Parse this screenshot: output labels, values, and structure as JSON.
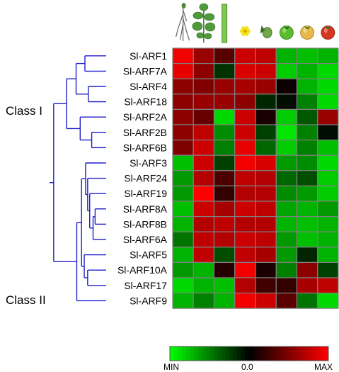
{
  "chart_data": {
    "type": "heatmap",
    "rows": [
      "Sl-ARF1",
      "Sl-ARF7A",
      "Sl-ARF4",
      "Sl-ARF18",
      "Sl-ARF2A",
      "Sl-ARF2B",
      "Sl-ARF6B",
      "Sl-ARF3",
      "Sl-ARF24",
      "Sl-ARF19",
      "Sl-ARF8A",
      "Sl-ARF8B",
      "Sl-ARF6A",
      "Sl-ARF5",
      "Sl-ARF10A",
      "Sl-ARF17",
      "Sl-ARF9"
    ],
    "columns": [
      "root",
      "leaf",
      "stem",
      "flower",
      "fruit-immature",
      "fruit-mature-green",
      "fruit-breaker",
      "fruit-ripe"
    ],
    "column_icons": [
      "root-icon",
      "leaf-icon",
      "stem-icon",
      "flower-icon",
      "small-fruit-icon",
      "green-fruit-icon",
      "breaker-fruit-icon",
      "red-fruit-icon"
    ],
    "values": [
      [
        0.95,
        0.6,
        0.35,
        0.8,
        0.75,
        -0.7,
        -0.75,
        -0.7
      ],
      [
        0.9,
        0.55,
        -0.2,
        0.85,
        0.8,
        -0.8,
        -0.7,
        -0.85
      ],
      [
        0.55,
        0.5,
        0.6,
        0.65,
        0.6,
        0.05,
        -0.7,
        -0.85
      ],
      [
        0.55,
        0.6,
        0.6,
        0.55,
        -0.15,
        -0.05,
        -0.5,
        -0.85
      ],
      [
        0.55,
        0.4,
        -0.85,
        0.8,
        0.1,
        -0.8,
        -0.35,
        0.6
      ],
      [
        0.55,
        0.75,
        -0.55,
        0.8,
        -0.25,
        -0.9,
        -0.5,
        -0.05
      ],
      [
        0.5,
        0.8,
        -0.5,
        0.9,
        -0.4,
        -0.8,
        -0.5,
        -0.75
      ],
      [
        -0.75,
        0.8,
        -0.25,
        0.95,
        0.85,
        -0.6,
        -0.55,
        -0.85
      ],
      [
        -0.6,
        0.7,
        0.3,
        0.75,
        0.7,
        -0.4,
        -0.3,
        -0.8
      ],
      [
        -0.6,
        1.0,
        0.2,
        0.7,
        0.7,
        -0.55,
        -0.6,
        -0.8
      ],
      [
        -0.75,
        0.8,
        0.65,
        0.8,
        0.75,
        -0.65,
        -0.7,
        -0.6
      ],
      [
        -0.7,
        0.7,
        0.75,
        0.7,
        0.7,
        -0.7,
        -0.75,
        -0.7
      ],
      [
        -0.45,
        0.75,
        0.7,
        0.8,
        0.75,
        -0.6,
        -0.75,
        -0.7
      ],
      [
        -0.7,
        0.75,
        -0.3,
        0.75,
        0.65,
        -0.6,
        -0.15,
        -0.7
      ],
      [
        -0.6,
        -0.7,
        0.15,
        0.95,
        0.1,
        -0.5,
        0.55,
        -0.25
      ],
      [
        -0.85,
        -0.7,
        -0.75,
        0.7,
        0.25,
        0.2,
        0.65,
        0.75
      ],
      [
        -0.7,
        -0.5,
        -0.7,
        0.95,
        0.8,
        0.35,
        -0.45,
        -0.85
      ]
    ],
    "class_labels": [
      "Class I",
      "Class II"
    ],
    "color_scale": {
      "min_label": "MIN",
      "mid_label": "0.0",
      "max_label": "MAX",
      "range": [
        -1,
        1
      ]
    },
    "colors": {
      "low": "#00ff00",
      "mid": "#000000",
      "high": "#ff0000",
      "tree": "#1f1fc8",
      "grid": "#808080"
    },
    "dendrogram": {
      "leaf_order": [
        "Sl-ARF1",
        "Sl-ARF7A",
        "Sl-ARF4",
        "Sl-ARF18",
        "Sl-ARF2A",
        "Sl-ARF2B",
        "Sl-ARF6B",
        "Sl-ARF3",
        "Sl-ARF24",
        "Sl-ARF19",
        "Sl-ARF8A",
        "Sl-ARF8B",
        "Sl-ARF6A",
        "Sl-ARF5",
        "Sl-ARF10A",
        "Sl-ARF17",
        "Sl-ARF9"
      ],
      "merges": [
        [
          0,
          1,
          0.25
        ],
        [
          2,
          3,
          0.2
        ],
        [
          17,
          18,
          0.38
        ],
        [
          5,
          6,
          0.15
        ],
        [
          4,
          20,
          0.32
        ],
        [
          19,
          21,
          0.52
        ],
        [
          10,
          11,
          0.1
        ],
        [
          23,
          12,
          0.13
        ],
        [
          9,
          24,
          0.18
        ],
        [
          8,
          25,
          0.21
        ],
        [
          7,
          26,
          0.24
        ],
        [
          14,
          15,
          0.21
        ],
        [
          13,
          28,
          0.26
        ],
        [
          27,
          29,
          0.3
        ],
        [
          30,
          16,
          0.37
        ],
        [
          22,
          31,
          0.71
        ]
      ]
    }
  }
}
